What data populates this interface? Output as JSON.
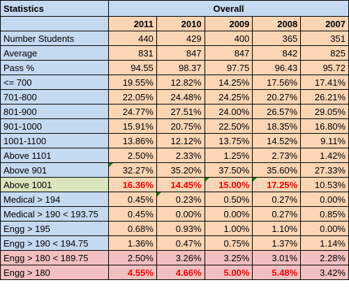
{
  "header": {
    "statistics": "Statistics",
    "overall": "Overall"
  },
  "years": [
    "2011",
    "2010",
    "2009",
    "2008",
    "2007"
  ],
  "rows": [
    {
      "label": "Number Students",
      "values": [
        "440",
        "429",
        "400",
        "365",
        "351"
      ]
    },
    {
      "label": "Average",
      "values": [
        "831",
        "847",
        "847",
        "842",
        "825"
      ]
    },
    {
      "label": "Pass %",
      "values": [
        "94.55",
        "98.37",
        "97.75",
        "96.43",
        "95.72"
      ]
    },
    {
      "label": "<= 700",
      "values": [
        "19.55%",
        "12.82%",
        "14.25%",
        "17.56%",
        "17.41%"
      ]
    },
    {
      "label": "701-800",
      "values": [
        "22.05%",
        "24.48%",
        "24.25%",
        "20.27%",
        "26.21%"
      ]
    },
    {
      "label": "801-900",
      "values": [
        "24.77%",
        "27.51%",
        "24.00%",
        "26.57%",
        "29.05%"
      ]
    },
    {
      "label": "901-1000",
      "values": [
        "15.91%",
        "20.75%",
        "22.50%",
        "18.35%",
        "16.80%"
      ]
    },
    {
      "label": "1001-1100",
      "values": [
        "13.86%",
        "12.12%",
        "13.75%",
        "14.52%",
        "9.11%"
      ]
    },
    {
      "label": "Above 1101",
      "values": [
        "2.50%",
        "2.33%",
        "1.25%",
        "2.73%",
        "1.42%"
      ]
    },
    {
      "label": "Above 901",
      "values": [
        "32.27%",
        "35.20%",
        "37.50%",
        "35.60%",
        "27.33%"
      ]
    },
    {
      "label": "Above 1001",
      "values": [
        "16.36%",
        "14.45%",
        "15.00%",
        "17.25%",
        "10.53%"
      ]
    },
    {
      "label": "Medical > 194",
      "values": [
        "0.45%",
        "0.23%",
        "0.50%",
        "0.27%",
        "0.00%"
      ]
    },
    {
      "label": "Medical > 190 < 193.75",
      "values": [
        "0.45%",
        "0.00%",
        "0.00%",
        "0.27%",
        "0.85%"
      ]
    },
    {
      "label": "Engg > 195",
      "values": [
        "0.68%",
        "0.93%",
        "1.00%",
        "1.10%",
        "0.00%"
      ]
    },
    {
      "label": "Engg > 190 < 194.75",
      "values": [
        "1.36%",
        "0.47%",
        "0.75%",
        "1.37%",
        "1.14%"
      ]
    },
    {
      "label": "Engg > 180 < 189.75",
      "values": [
        "2.50%",
        "3.26%",
        "3.25%",
        "3.01%",
        "2.28%"
      ]
    },
    {
      "label": "Engg > 180",
      "values": [
        "4.55%",
        "4.66%",
        "5.00%",
        "5.48%",
        "3.42%"
      ]
    }
  ],
  "colors": {
    "label_bg": "#c5d9f1",
    "value_bg": "#fcd5b4",
    "highlight_green": "#d8e4bc",
    "highlight_pink": "#f2c0c0",
    "emphasis_text": "#ff0000",
    "cell_marker": "#0a8a0a"
  }
}
